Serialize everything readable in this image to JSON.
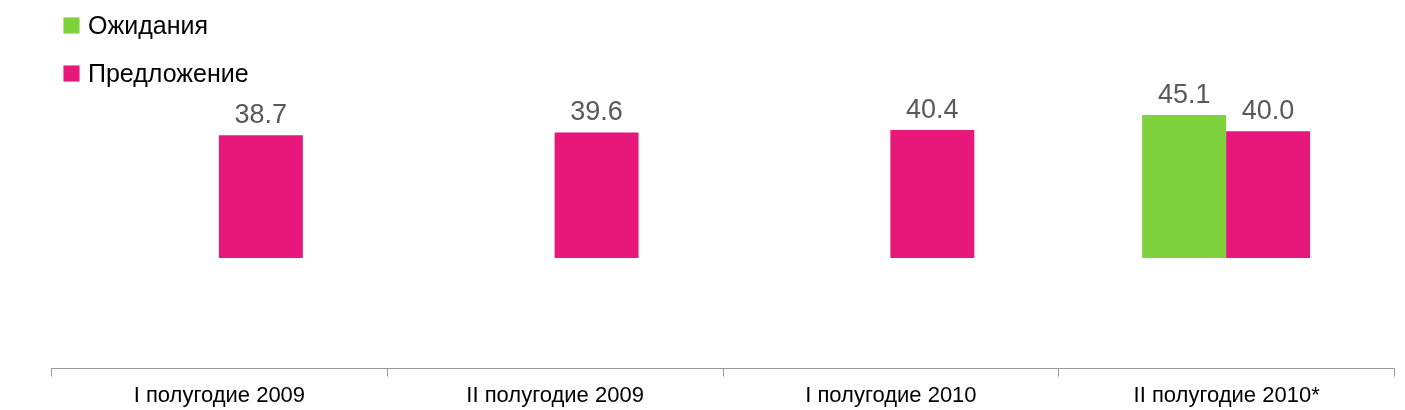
{
  "chart_data": {
    "type": "bar",
    "categories": [
      "I полугодие 2009",
      "II полугодие 2009",
      "I полугодие 2010",
      "II полугодие 2010*"
    ],
    "series": [
      {
        "name": "Ожидания",
        "color": "#7ed23c",
        "values": [
          null,
          null,
          null,
          45.1
        ],
        "value_labels": [
          null,
          null,
          null,
          "45.1"
        ]
      },
      {
        "name": "Предложение",
        "color": "#e8177a",
        "values": [
          38.7,
          39.6,
          40.4,
          40.0
        ],
        "value_labels": [
          "38.7",
          "39.6",
          "40.4",
          "40.0"
        ]
      }
    ],
    "legend": "top left",
    "grid": false
  }
}
